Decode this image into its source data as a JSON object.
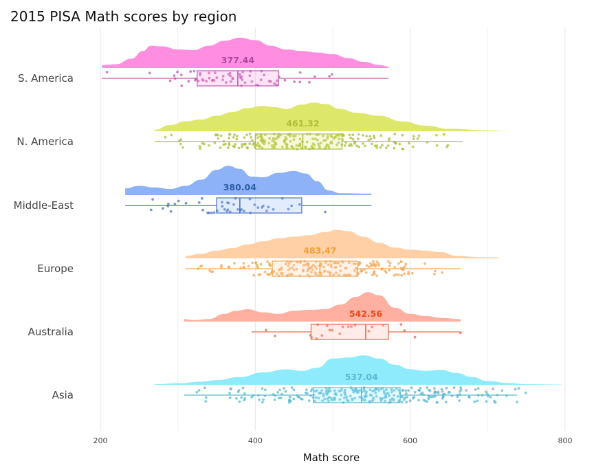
{
  "chart_data": {
    "type": "raincloud",
    "title": "2015 PISA Math scores by region",
    "xlabel": "Math score",
    "ylabel": "",
    "xlim": [
      200,
      800
    ],
    "xticks": [
      200,
      400,
      600,
      800
    ],
    "grid": true,
    "legend": "none",
    "series": [
      {
        "name": "S. America",
        "color": "#ff8ee0",
        "box_color": "#c05aaa",
        "label_color": "#b0479a",
        "whisker_min": 202,
        "q1": 325,
        "median": 377.44,
        "q3": 430,
        "whisker_max": 572,
        "median_label": "377.44",
        "density": [
          [
            202,
            0.1
          ],
          [
            220,
            0.12
          ],
          [
            240,
            0.3
          ],
          [
            255,
            0.55
          ],
          [
            265,
            0.72
          ],
          [
            280,
            0.7
          ],
          [
            300,
            0.6
          ],
          [
            320,
            0.58
          ],
          [
            340,
            0.72
          ],
          [
            360,
            0.88
          ],
          [
            380,
            0.98
          ],
          [
            400,
            0.9
          ],
          [
            420,
            0.72
          ],
          [
            440,
            0.6
          ],
          [
            460,
            0.55
          ],
          [
            480,
            0.5
          ],
          [
            500,
            0.45
          ],
          [
            520,
            0.32
          ],
          [
            540,
            0.2
          ],
          [
            560,
            0.1
          ],
          [
            572,
            0.05
          ]
        ],
        "n_points": 65,
        "point_min": 202,
        "point_max": 572,
        "seed": 11
      },
      {
        "name": "N. America",
        "color": "#dde86a",
        "box_color": "#aebd3a",
        "label_color": "#aebd3a",
        "whisker_min": 270,
        "q1": 400,
        "median": 461.32,
        "q3": 512,
        "whisker_max": 668,
        "median_label": "461.32",
        "density": [
          [
            270,
            0.05
          ],
          [
            290,
            0.2
          ],
          [
            310,
            0.32
          ],
          [
            330,
            0.38
          ],
          [
            350,
            0.5
          ],
          [
            370,
            0.62
          ],
          [
            390,
            0.75
          ],
          [
            410,
            0.82
          ],
          [
            425,
            0.78
          ],
          [
            440,
            0.72
          ],
          [
            460,
            0.86
          ],
          [
            475,
            0.93
          ],
          [
            490,
            0.88
          ],
          [
            510,
            0.72
          ],
          [
            530,
            0.6
          ],
          [
            560,
            0.5
          ],
          [
            590,
            0.32
          ],
          [
            620,
            0.18
          ],
          [
            650,
            0.08
          ],
          [
            700,
            0.03
          ],
          [
            725,
            0.01
          ]
        ],
        "n_points": 230,
        "point_min": 270,
        "point_max": 725,
        "seed": 23
      },
      {
        "name": "Middle-East",
        "color": "#8db2f7",
        "box_color": "#4d72c0",
        "label_color": "#2f5ea8",
        "whisker_min": 232,
        "q1": 350,
        "median": 380.04,
        "q3": 460,
        "whisker_max": 550,
        "median_label": "380.04",
        "density": [
          [
            232,
            0.22
          ],
          [
            250,
            0.3
          ],
          [
            270,
            0.25
          ],
          [
            290,
            0.2
          ],
          [
            310,
            0.3
          ],
          [
            330,
            0.5
          ],
          [
            350,
            0.82
          ],
          [
            365,
            0.95
          ],
          [
            380,
            0.85
          ],
          [
            395,
            0.6
          ],
          [
            410,
            0.58
          ],
          [
            430,
            0.72
          ],
          [
            450,
            0.78
          ],
          [
            465,
            0.7
          ],
          [
            480,
            0.45
          ],
          [
            495,
            0.15
          ],
          [
            510,
            0.06
          ],
          [
            550,
            0.05
          ]
        ],
        "n_points": 45,
        "point_min": 232,
        "point_max": 550,
        "seed": 37
      },
      {
        "name": "Europe",
        "color": "#ffd0a6",
        "box_color": "#f0a85a",
        "label_color": "#f0a030",
        "whisker_min": 310,
        "q1": 422,
        "median": 483.47,
        "q3": 532,
        "whisker_max": 665,
        "median_label": "483.47",
        "density": [
          [
            310,
            0.08
          ],
          [
            330,
            0.15
          ],
          [
            350,
            0.25
          ],
          [
            370,
            0.33
          ],
          [
            390,
            0.45
          ],
          [
            410,
            0.55
          ],
          [
            430,
            0.65
          ],
          [
            450,
            0.7
          ],
          [
            470,
            0.75
          ],
          [
            490,
            0.85
          ],
          [
            505,
            0.92
          ],
          [
            520,
            0.88
          ],
          [
            540,
            0.7
          ],
          [
            560,
            0.5
          ],
          [
            580,
            0.35
          ],
          [
            600,
            0.28
          ],
          [
            620,
            0.25
          ],
          [
            640,
            0.2
          ],
          [
            660,
            0.08
          ],
          [
            690,
            0.04
          ],
          [
            715,
            0.03
          ]
        ],
        "n_points": 200,
        "point_min": 310,
        "point_max": 715,
        "seed": 51
      },
      {
        "name": "Australia",
        "color": "#ffb0a0",
        "box_color": "#e66a4a",
        "label_color": "#e84a1a",
        "whisker_min": 395,
        "q1": 472,
        "median": 542.56,
        "q3": 572,
        "whisker_max": 665,
        "median_label": "542.56",
        "density": [
          [
            308,
            0.08
          ],
          [
            320,
            0.05
          ],
          [
            340,
            0.08
          ],
          [
            360,
            0.25
          ],
          [
            375,
            0.35
          ],
          [
            390,
            0.4
          ],
          [
            410,
            0.3
          ],
          [
            430,
            0.25
          ],
          [
            450,
            0.35
          ],
          [
            470,
            0.38
          ],
          [
            490,
            0.4
          ],
          [
            510,
            0.55
          ],
          [
            530,
            0.8
          ],
          [
            545,
            0.95
          ],
          [
            560,
            0.85
          ],
          [
            580,
            0.45
          ],
          [
            600,
            0.25
          ],
          [
            620,
            0.18
          ],
          [
            640,
            0.12
          ],
          [
            665,
            0.08
          ]
        ],
        "n_points": 22,
        "point_min": 308,
        "point_max": 665,
        "seed": 67
      },
      {
        "name": "Asia",
        "color": "#8eebfc",
        "box_color": "#5cb8d0",
        "label_color": "#5cb8d0",
        "whisker_min": 308,
        "q1": 475,
        "median": 537.04,
        "q3": 587,
        "whisker_max": 738,
        "median_label": "537.04",
        "density": [
          [
            270,
            0.02
          ],
          [
            300,
            0.05
          ],
          [
            330,
            0.1
          ],
          [
            350,
            0.15
          ],
          [
            380,
            0.25
          ],
          [
            410,
            0.4
          ],
          [
            440,
            0.5
          ],
          [
            460,
            0.45
          ],
          [
            480,
            0.55
          ],
          [
            500,
            0.85
          ],
          [
            520,
            0.88
          ],
          [
            540,
            0.95
          ],
          [
            560,
            0.85
          ],
          [
            580,
            0.65
          ],
          [
            600,
            0.5
          ],
          [
            620,
            0.45
          ],
          [
            640,
            0.48
          ],
          [
            660,
            0.38
          ],
          [
            680,
            0.25
          ],
          [
            700,
            0.12
          ],
          [
            730,
            0.05
          ],
          [
            750,
            0.02
          ],
          [
            795,
            0.01
          ]
        ],
        "n_points": 280,
        "point_min": 270,
        "point_max": 795,
        "seed": 83
      }
    ]
  }
}
